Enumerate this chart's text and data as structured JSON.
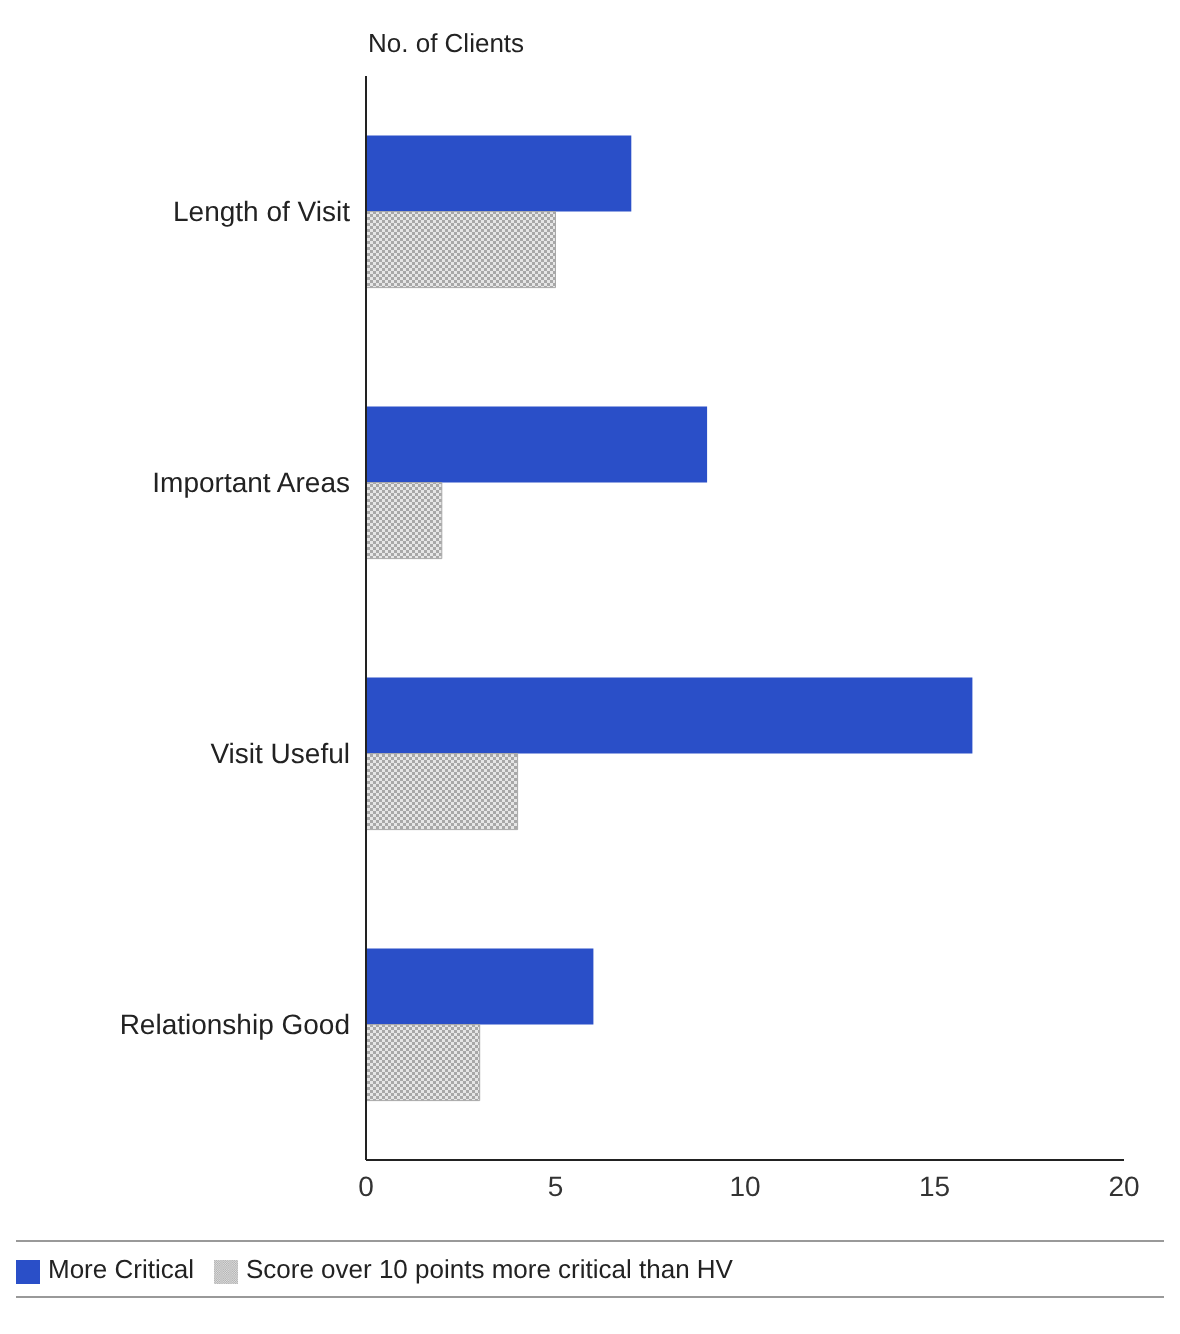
{
  "chart_data": {
    "type": "bar",
    "orientation": "horizontal",
    "xlabel": "No. of Clients",
    "categories": [
      "Length of Visit",
      "Important Areas",
      "Visit Useful",
      "Relationship Good"
    ],
    "series": [
      {
        "name": "More Critical",
        "color": "#2a4fc8",
        "values": [
          7,
          9,
          16,
          6
        ]
      },
      {
        "name": "Score over 10 points more critical than HV",
        "color": "#a8a8a8",
        "values": [
          5,
          2,
          4,
          3
        ]
      }
    ],
    "xlim": [
      0,
      20
    ],
    "xticks": [
      0,
      5,
      10,
      15,
      20
    ],
    "grid": false,
    "legend": "bottom"
  }
}
